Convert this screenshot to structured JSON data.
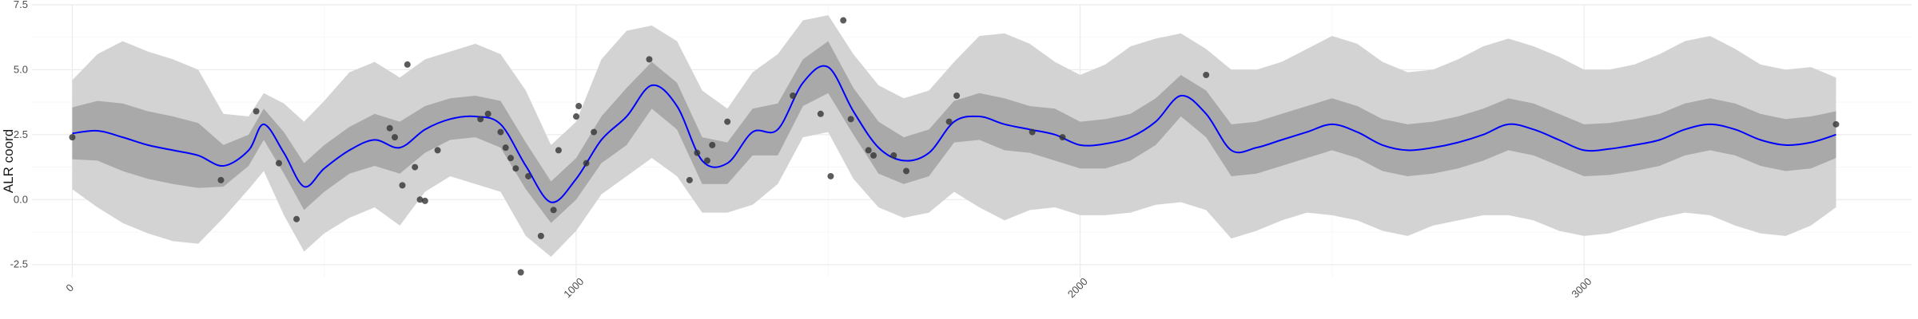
{
  "chart_data": {
    "type": "line",
    "title": "",
    "xlabel": "",
    "ylabel": "ALR coord",
    "xlim": [
      -80,
      3650
    ],
    "ylim": [
      -3.0,
      7.5
    ],
    "x_ticks": [
      0,
      1000,
      2000,
      3000
    ],
    "x_tick_labels": [
      "0",
      "1000",
      "2000",
      "3000"
    ],
    "y_ticks": [
      -2.5,
      0.0,
      2.5,
      5.0,
      7.5
    ],
    "y_tick_labels": [
      "-2.5",
      "0.0",
      "2.5",
      "5.0",
      "7.5"
    ],
    "grid": true,
    "legend": "none",
    "colors": {
      "mean_line": "#0000ff",
      "inner_band": "#a9a9a9",
      "outer_band": "#d3d3d3",
      "points": "#333333",
      "grid_major": "#ebebeb",
      "grid_minor": "#f5f5f5"
    },
    "series": [
      {
        "kind": "mean",
        "x": [
          0,
          50,
          100,
          150,
          200,
          250,
          300,
          350,
          380,
          420,
          460,
          500,
          550,
          600,
          650,
          700,
          750,
          800,
          850,
          900,
          950,
          1000,
          1050,
          1100,
          1150,
          1200,
          1250,
          1300,
          1350,
          1400,
          1450,
          1500,
          1550,
          1600,
          1650,
          1700,
          1750,
          1800,
          1850,
          1900,
          1950,
          2000,
          2050,
          2100,
          2150,
          2200,
          2250,
          2300,
          2350,
          2400,
          2450,
          2500,
          2550,
          2600,
          2650,
          2700,
          2750,
          2800,
          2850,
          2900,
          2950,
          3000,
          3050,
          3100,
          3150,
          3200,
          3250,
          3300,
          3350,
          3400,
          3450,
          3500
        ],
        "y": [
          2.55,
          2.65,
          2.4,
          2.1,
          1.9,
          1.7,
          1.3,
          1.9,
          2.9,
          1.8,
          0.5,
          1.2,
          1.9,
          2.3,
          2.0,
          2.7,
          3.1,
          3.2,
          2.9,
          1.3,
          -0.1,
          0.8,
          2.3,
          3.2,
          4.4,
          3.6,
          1.5,
          1.4,
          2.6,
          2.7,
          4.5,
          5.1,
          3.4,
          2.0,
          1.5,
          1.8,
          3.0,
          3.2,
          2.9,
          2.7,
          2.5,
          2.1,
          2.15,
          2.4,
          3.0,
          4.0,
          3.3,
          1.9,
          2.0,
          2.3,
          2.6,
          2.9,
          2.6,
          2.1,
          1.9,
          2.0,
          2.2,
          2.5,
          2.9,
          2.7,
          2.3,
          1.9,
          1.95,
          2.1,
          2.3,
          2.7,
          2.9,
          2.7,
          2.3,
          2.1,
          2.2,
          2.5
        ]
      },
      {
        "kind": "inner_band",
        "x": [
          0,
          50,
          100,
          150,
          200,
          250,
          300,
          350,
          380,
          420,
          460,
          500,
          550,
          600,
          650,
          700,
          750,
          800,
          850,
          900,
          950,
          1000,
          1050,
          1100,
          1150,
          1200,
          1250,
          1300,
          1350,
          1400,
          1450,
          1500,
          1550,
          1600,
          1650,
          1700,
          1750,
          1800,
          1850,
          1900,
          1950,
          2000,
          2050,
          2100,
          2150,
          2200,
          2250,
          2300,
          2350,
          2400,
          2450,
          2500,
          2550,
          2600,
          2650,
          2700,
          2750,
          2800,
          2850,
          2900,
          2950,
          3000,
          3050,
          3100,
          3150,
          3200,
          3250,
          3300,
          3350,
          3400,
          3450,
          3500
        ],
        "lower": [
          1.55,
          1.5,
          1.1,
          0.8,
          0.6,
          0.45,
          0.5,
          1.3,
          2.3,
          1.0,
          -0.4,
          0.3,
          1.0,
          1.3,
          1.0,
          1.8,
          2.3,
          2.4,
          2.0,
          0.4,
          -0.9,
          0.0,
          1.4,
          2.1,
          3.5,
          2.7,
          0.6,
          0.6,
          1.7,
          1.7,
          3.6,
          4.1,
          2.5,
          1.0,
          0.6,
          0.9,
          2.2,
          2.3,
          1.9,
          1.8,
          1.5,
          1.2,
          1.2,
          1.5,
          2.1,
          3.2,
          2.4,
          0.9,
          1.0,
          1.3,
          1.6,
          1.9,
          1.6,
          1.1,
          0.9,
          1.0,
          1.2,
          1.5,
          1.9,
          1.7,
          1.3,
          0.9,
          0.95,
          1.1,
          1.3,
          1.7,
          1.9,
          1.7,
          1.3,
          1.1,
          1.2,
          1.6
        ],
        "upper": [
          3.55,
          3.8,
          3.7,
          3.4,
          3.2,
          2.95,
          2.1,
          2.5,
          3.5,
          2.6,
          1.4,
          2.1,
          2.8,
          3.3,
          3.0,
          3.6,
          3.9,
          4.0,
          3.8,
          2.2,
          0.7,
          1.6,
          3.2,
          4.3,
          5.3,
          4.5,
          2.4,
          2.2,
          3.5,
          3.7,
          5.4,
          6.1,
          4.3,
          3.0,
          2.4,
          2.7,
          3.8,
          4.1,
          3.9,
          3.6,
          3.5,
          3.0,
          3.1,
          3.3,
          3.9,
          4.8,
          4.2,
          2.9,
          3.0,
          3.3,
          3.6,
          3.9,
          3.6,
          3.1,
          2.9,
          3.0,
          3.2,
          3.5,
          3.9,
          3.7,
          3.3,
          2.9,
          2.95,
          3.1,
          3.3,
          3.7,
          3.9,
          3.7,
          3.3,
          3.1,
          3.2,
          3.4
        ]
      },
      {
        "kind": "outer_band",
        "x": [
          0,
          50,
          100,
          150,
          200,
          250,
          300,
          350,
          380,
          420,
          460,
          500,
          550,
          600,
          650,
          700,
          750,
          800,
          850,
          900,
          950,
          1000,
          1050,
          1100,
          1150,
          1200,
          1250,
          1300,
          1350,
          1400,
          1450,
          1500,
          1550,
          1600,
          1650,
          1700,
          1750,
          1800,
          1850,
          1900,
          1950,
          2000,
          2050,
          2100,
          2150,
          2200,
          2250,
          2300,
          2350,
          2400,
          2450,
          2500,
          2550,
          2600,
          2650,
          2700,
          2750,
          2800,
          2850,
          2900,
          2950,
          3000,
          3050,
          3100,
          3150,
          3200,
          3250,
          3300,
          3350,
          3400,
          3450,
          3500
        ],
        "lower": [
          0.4,
          -0.3,
          -0.9,
          -1.3,
          -1.6,
          -1.7,
          -0.7,
          0.4,
          1.1,
          -0.6,
          -2.0,
          -1.3,
          -0.7,
          -0.3,
          -1.0,
          0.3,
          0.9,
          0.6,
          0.3,
          -1.4,
          -2.2,
          -1.2,
          0.2,
          0.9,
          1.6,
          0.9,
          -0.5,
          -0.5,
          -0.2,
          0.6,
          2.4,
          2.6,
          0.8,
          -0.3,
          -0.7,
          -0.5,
          0.3,
          -0.3,
          -0.8,
          -0.4,
          -0.3,
          -0.6,
          -0.6,
          -0.5,
          -0.2,
          -0.1,
          -0.4,
          -1.5,
          -1.2,
          -0.8,
          -0.5,
          -0.6,
          -0.8,
          -1.2,
          -1.4,
          -1.0,
          -0.8,
          -0.6,
          -0.6,
          -0.8,
          -1.2,
          -1.4,
          -1.3,
          -1.0,
          -0.7,
          -0.5,
          -0.6,
          -1.0,
          -1.3,
          -1.4,
          -1.0,
          -0.3
        ],
        "upper": [
          4.6,
          5.6,
          6.1,
          5.7,
          5.4,
          5.0,
          3.3,
          3.2,
          4.1,
          3.7,
          3.0,
          3.8,
          4.9,
          5.3,
          4.7,
          5.4,
          5.7,
          6.0,
          5.6,
          4.2,
          2.1,
          3.0,
          5.4,
          6.5,
          6.7,
          6.1,
          4.2,
          3.5,
          4.9,
          5.6,
          6.9,
          7.1,
          5.6,
          4.4,
          3.9,
          4.2,
          5.3,
          6.3,
          6.4,
          6.0,
          5.3,
          4.8,
          5.2,
          5.9,
          6.2,
          6.4,
          5.8,
          5.0,
          5.0,
          5.3,
          5.8,
          6.3,
          6.0,
          5.3,
          4.9,
          5.0,
          5.4,
          5.9,
          6.2,
          5.9,
          5.5,
          5.0,
          5.0,
          5.2,
          5.6,
          6.1,
          6.3,
          5.8,
          5.2,
          5.0,
          5.1,
          4.7
        ]
      }
    ],
    "points": {
      "x": [
        0,
        295,
        365,
        410,
        445,
        630,
        640,
        655,
        665,
        680,
        690,
        700,
        725,
        810,
        825,
        850,
        860,
        870,
        880,
        890,
        905,
        930,
        955,
        965,
        1000,
        1005,
        1020,
        1035,
        1145,
        1225,
        1240,
        1260,
        1270,
        1300,
        1430,
        1485,
        1505,
        1530,
        1545,
        1580,
        1590,
        1630,
        1655,
        1740,
        1755,
        1905,
        1965,
        2250,
        3500
      ],
      "y": [
        2.4,
        0.75,
        3.4,
        1.4,
        -0.75,
        2.75,
        2.4,
        0.55,
        5.2,
        1.25,
        0.0,
        -0.05,
        1.9,
        3.1,
        3.3,
        2.6,
        2.0,
        1.6,
        1.2,
        -2.8,
        0.9,
        -1.4,
        -0.4,
        1.9,
        3.2,
        3.6,
        1.4,
        2.6,
        5.4,
        0.75,
        1.8,
        1.5,
        2.1,
        3.0,
        4.0,
        3.3,
        0.9,
        6.9,
        3.1,
        1.9,
        1.7,
        1.7,
        1.1,
        3.0,
        4.0,
        2.6,
        2.4,
        4.8,
        2.9
      ]
    }
  }
}
